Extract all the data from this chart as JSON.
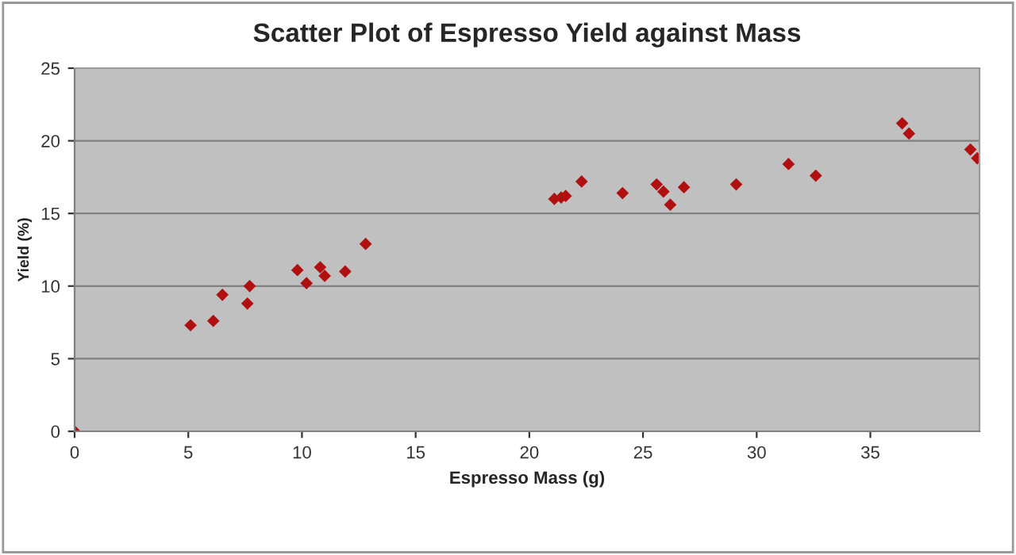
{
  "chart_data": {
    "type": "scatter",
    "title": "Scatter Plot of Espresso Yield against Mass",
    "xlabel": "Espresso Mass (g)",
    "ylabel": "Yield (%)",
    "x": [
      0,
      5.1,
      6.1,
      6.5,
      7.6,
      7.7,
      9.8,
      10.2,
      10.8,
      11.0,
      11.9,
      12.8,
      21.1,
      21.4,
      21.6,
      22.3,
      24.1,
      25.6,
      25.9,
      26.2,
      26.8,
      29.1,
      31.4,
      32.6,
      36.4,
      36.7,
      39.4,
      39.7
    ],
    "values": [
      0,
      7.3,
      7.6,
      9.4,
      8.8,
      10.0,
      11.1,
      10.2,
      11.3,
      10.7,
      11.0,
      12.9,
      16.0,
      16.1,
      16.2,
      17.2,
      16.4,
      17.0,
      16.5,
      15.6,
      16.8,
      17.0,
      18.4,
      17.6,
      21.2,
      20.5,
      19.4,
      18.8
    ],
    "color": "#b01010",
    "marker": "diamond",
    "xlim": [
      0,
      39.8
    ],
    "xticks": [
      0,
      5,
      10,
      15,
      20,
      25,
      30,
      35
    ],
    "ylim": [
      0,
      25
    ],
    "yticks": [
      0,
      5,
      10,
      15,
      20,
      25
    ],
    "grid": "y",
    "legend": false
  }
}
